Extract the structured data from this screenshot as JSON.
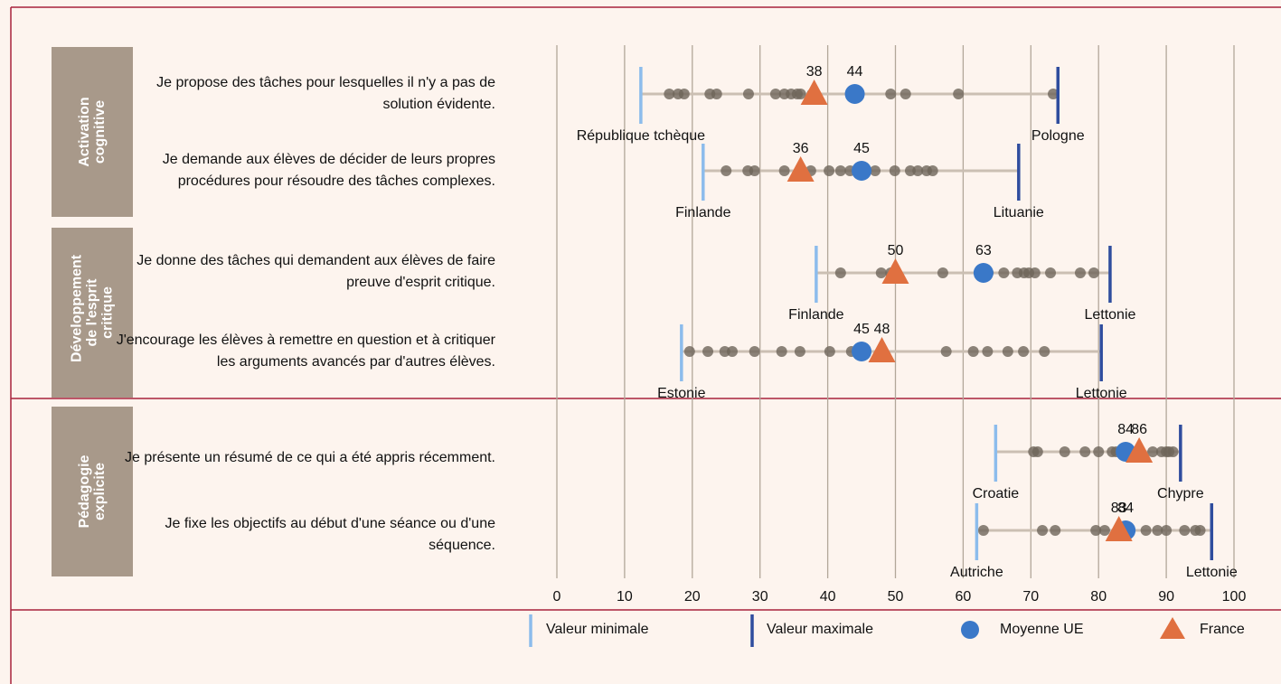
{
  "chart_data": {
    "type": "dotrange",
    "xlim": [
      0,
      104
    ],
    "xticks": [
      0,
      10,
      20,
      30,
      40,
      50,
      60,
      70,
      80,
      90,
      100
    ],
    "grid": true,
    "colors": {
      "min": "#8cbcec",
      "max": "#2f4d9e",
      "eu": "#3a78c8",
      "france": "#e07040",
      "country": "#6e655a"
    },
    "legend": [
      "Valeur minimale",
      "Valeur maximale",
      "Moyenne UE",
      "France"
    ],
    "groups": [
      {
        "label": "Activation cognitive",
        "rows": [
          {
            "label": "Je propose des tâches pour lesquelles il n'y a pas de solution évidente.",
            "min": 12.4,
            "min_label": "République tchèque",
            "max": 74,
            "max_label": "Pologne",
            "eu": 44,
            "france": 38,
            "countries": [
              16.6,
              17.9,
              18.8,
              22.6,
              23.6,
              28.3,
              32.3,
              33.6,
              34.6,
              35.5,
              36.0,
              37.7,
              49.3,
              51.5,
              59.3,
              73.3
            ]
          },
          {
            "label": "Je demande aux élèves de décider de leurs propres procédures pour résoudre des tâches complexes.",
            "min": 21.6,
            "min_label": "Finlande",
            "max": 68.2,
            "max_label": "Lituanie",
            "eu": 45,
            "france": 36,
            "countries": [
              25,
              28.2,
              29.2,
              33.6,
              37.5,
              40.2,
              41.9,
              43.3,
              45.7,
              47,
              49.9,
              52.2,
              53.3,
              54.6,
              55.5
            ]
          }
        ]
      },
      {
        "label": "Développement de l'esprit critique",
        "rows": [
          {
            "label": "Je donne des tâches qui demandent aux élèves de faire preuve d'esprit critique.",
            "min": 38.3,
            "min_label": "Finlande",
            "max": 81.7,
            "max_label": "Lettonie",
            "eu": 63,
            "france": 50,
            "countries": [
              41.9,
              47.9,
              49.3,
              57,
              63.7,
              66,
              68,
              69,
              69.7,
              70.6,
              72.9,
              77.3,
              79.3
            ]
          },
          {
            "label": "J'encourage les élèves à remettre en question et à critiquer les arguments avancés par d'autres élèves.",
            "min": 18.4,
            "min_label": "Estonie",
            "max": 80.4,
            "max_label": "Lettonie",
            "eu": 45,
            "france": 48,
            "countries": [
              19.6,
              22.3,
              24.8,
              25.9,
              29.2,
              33.2,
              35.9,
              40.3,
              43.5,
              57.5,
              61.5,
              63.6,
              66.6,
              68.9,
              72
            ]
          }
        ]
      },
      {
        "label": "Pédagogie explicite",
        "rows": [
          {
            "label": "Je présente un résumé de ce qui a été appris récemment.",
            "min": 64.8,
            "min_label": "Croatie",
            "max": 92.1,
            "max_label": "Chypre",
            "eu": 84,
            "france": 86,
            "countries": [
              70.4,
              71,
              75,
              78,
              80,
              82,
              82.6,
              85.7,
              88,
              89.3,
              90,
              90.4,
              91
            ]
          },
          {
            "label": "Je fixe les objectifs au début d'une séance ou d'une séquence.",
            "min": 62,
            "min_label": "Autriche",
            "max": 96.7,
            "max_label": "Lettonie",
            "eu": 84,
            "france": 83,
            "countries": [
              63,
              71.7,
              73.6,
              79.6,
              80.9,
              87,
              88.7,
              90,
              92.7,
              94.3,
              95
            ]
          }
        ]
      }
    ]
  }
}
